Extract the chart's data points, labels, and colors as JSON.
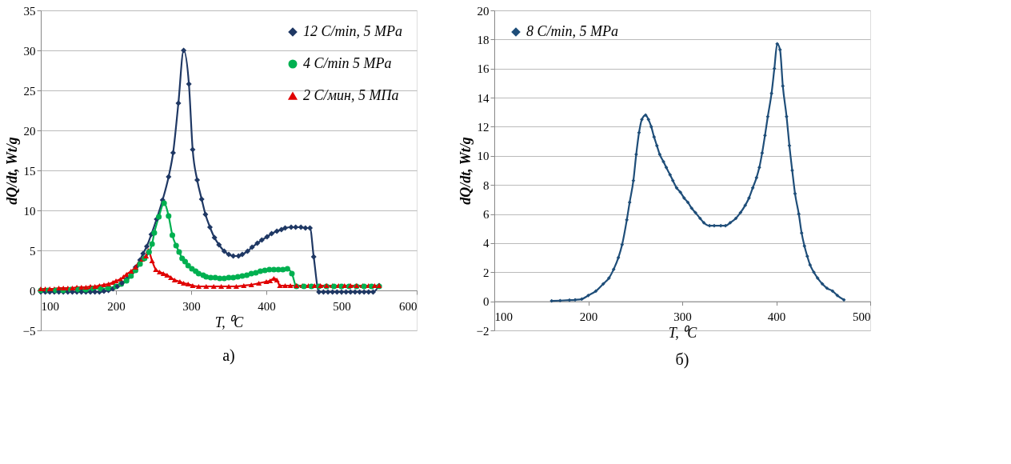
{
  "chart_data": [
    {
      "type": "line",
      "xlabel": "T, ⁰C",
      "ylabel": "dQ/dt, Wt/g",
      "xlim": [
        100,
        600
      ],
      "ylim": [
        -5,
        35
      ],
      "xticks": [
        100,
        200,
        300,
        400,
        500,
        600
      ],
      "yticks": [
        -5,
        0,
        5,
        10,
        15,
        20,
        25,
        30,
        35
      ],
      "grid": "y",
      "legend": "top right",
      "annotations": [
        "а)"
      ],
      "series": [
        {
          "name": "12 C/min, 5 MPa",
          "color": "#1f3864",
          "marker": "diamond",
          "x": [
            100,
            106,
            112,
            118,
            124,
            130,
            136,
            142,
            148,
            154,
            160,
            166,
            172,
            178,
            184,
            190,
            196,
            202,
            208,
            214,
            220,
            226,
            232,
            236,
            241,
            247,
            254,
            262,
            270,
            276,
            283,
            290,
            297,
            302,
            308,
            314,
            319,
            325,
            331,
            337,
            344,
            350,
            356,
            363,
            368,
            375,
            381,
            388,
            394,
            401,
            407,
            414,
            420,
            425,
            433,
            439,
            446,
            452,
            458,
            463,
            470,
            476,
            482,
            488,
            494,
            500,
            506,
            512,
            518,
            524,
            530,
            536,
            542,
            550
          ],
          "values": [
            -0.2,
            -0.2,
            -0.2,
            -0.2,
            -0.2,
            -0.2,
            -0.2,
            -0.2,
            -0.2,
            -0.2,
            -0.2,
            -0.2,
            -0.2,
            -0.2,
            -0.1,
            0,
            0.2,
            0.5,
            0.9,
            1.4,
            2.1,
            2.9,
            3.8,
            4.6,
            5.5,
            7.0,
            8.9,
            11.3,
            14.2,
            17.2,
            23.4,
            30,
            25.8,
            17.6,
            13.8,
            11.4,
            9.5,
            7.9,
            6.6,
            5.7,
            4.9,
            4.5,
            4.3,
            4.3,
            4.5,
            4.9,
            5.4,
            5.9,
            6.3,
            6.7,
            7.1,
            7.4,
            7.6,
            7.8,
            7.9,
            7.9,
            7.9,
            7.8,
            7.8,
            4.2,
            -0.2,
            -0.2,
            -0.2,
            -0.2,
            -0.2,
            -0.2,
            -0.2,
            -0.2,
            -0.2,
            -0.2,
            -0.2,
            -0.2,
            -0.2,
            0.6
          ]
        },
        {
          "name": "4 C/min 5 MPa",
          "color": "#00b050",
          "marker": "circle",
          "x": [
            100,
            110,
            120,
            130,
            140,
            150,
            160,
            170,
            180,
            190,
            200,
            207,
            214,
            220,
            226,
            232,
            238,
            244,
            248,
            251,
            257,
            264,
            270,
            275,
            280,
            284,
            288,
            292,
            296,
            301,
            306,
            310,
            316,
            320,
            326,
            332,
            338,
            344,
            350,
            356,
            362,
            368,
            374,
            380,
            386,
            392,
            398,
            404,
            410,
            416,
            422,
            428,
            434,
            440,
            450,
            460,
            470,
            480,
            490,
            500,
            510,
            520,
            530,
            540,
            550
          ],
          "values": [
            0,
            0,
            0,
            0,
            0.1,
            0.1,
            0.1,
            0.2,
            0.2,
            0.3,
            0.5,
            0.8,
            1.2,
            1.8,
            2.5,
            3.3,
            4.0,
            4.8,
            5.8,
            7.2,
            9.2,
            10.9,
            9.3,
            6.9,
            5.6,
            4.8,
            4.0,
            3.6,
            3.1,
            2.7,
            2.4,
            2.1,
            1.9,
            1.7,
            1.6,
            1.6,
            1.5,
            1.5,
            1.6,
            1.6,
            1.7,
            1.8,
            1.9,
            2.1,
            2.2,
            2.4,
            2.5,
            2.6,
            2.6,
            2.6,
            2.6,
            2.7,
            2.1,
            0.5,
            0.5,
            0.5,
            0.5,
            0.5,
            0.5,
            0.5,
            0.5,
            0.5,
            0.5,
            0.5,
            0.5
          ]
        },
        {
          "name": "2 С/мин, 5 МПа",
          "color": "#e00000",
          "marker": "triangle",
          "x": [
            100,
            106,
            112,
            118,
            124,
            130,
            136,
            142,
            148,
            154,
            160,
            166,
            172,
            178,
            184,
            190,
            196,
            200,
            206,
            210,
            214,
            220,
            226,
            230,
            235,
            240,
            243,
            248,
            253,
            258,
            263,
            268,
            273,
            278,
            285,
            290,
            296,
            302,
            310,
            320,
            330,
            340,
            350,
            360,
            370,
            380,
            390,
            400,
            405,
            410,
            414,
            418,
            425,
            432,
            440,
            448,
            456,
            464,
            472,
            480,
            488,
            496,
            504,
            512,
            520,
            528,
            536,
            544,
            550
          ],
          "values": [
            0.2,
            0.2,
            0.2,
            0.2,
            0.3,
            0.3,
            0.3,
            0.3,
            0.4,
            0.4,
            0.4,
            0.5,
            0.5,
            0.6,
            0.7,
            0.8,
            1.0,
            1.2,
            1.4,
            1.7,
            2.0,
            2.4,
            2.9,
            3.4,
            3.9,
            4.3,
            5.0,
            3.7,
            2.6,
            2.3,
            2.1,
            1.9,
            1.6,
            1.3,
            1.1,
            0.9,
            0.8,
            0.6,
            0.5,
            0.5,
            0.5,
            0.5,
            0.5,
            0.5,
            0.6,
            0.7,
            0.9,
            1.1,
            1.2,
            1.5,
            1.3,
            0.6,
            0.6,
            0.6,
            0.6,
            0.6,
            0.6,
            0.6,
            0.6,
            0.6,
            0.6,
            0.6,
            0.6,
            0.6,
            0.6,
            0.6,
            0.6,
            0.6,
            0.6
          ]
        }
      ]
    },
    {
      "type": "line",
      "xlabel": "T, ⁰C",
      "ylabel": "dQ/dt, Wt/g",
      "xlim": [
        100,
        500
      ],
      "ylim": [
        -2,
        20
      ],
      "xticks": [
        100,
        200,
        300,
        400,
        500
      ],
      "yticks": [
        -2,
        0,
        2,
        4,
        6,
        8,
        10,
        12,
        14,
        16,
        18,
        20
      ],
      "grid": "y",
      "legend": "top left",
      "annotations": [
        "б)"
      ],
      "series": [
        {
          "name": "8 C/min, 5 MPa",
          "color": "#1f4e79",
          "marker": "diamond",
          "x": [
            161,
            170,
            180,
            186,
            193,
            200,
            208,
            216,
            222,
            227,
            232,
            236,
            241,
            244,
            248,
            251,
            254,
            257,
            261,
            264,
            267,
            270,
            273,
            276,
            280,
            283,
            287,
            290,
            294,
            298,
            302,
            306,
            310,
            314,
            319,
            323,
            329,
            334,
            341,
            346,
            351,
            357,
            362,
            367,
            371,
            375,
            379,
            382,
            385,
            388,
            391,
            395,
            398,
            401,
            404,
            407,
            411,
            414,
            417,
            420,
            424,
            427,
            430,
            433,
            436,
            440,
            444,
            449,
            454,
            460,
            465,
            472
          ],
          "values": [
            0.03,
            0.05,
            0.08,
            0.1,
            0.15,
            0.4,
            0.7,
            1.2,
            1.6,
            2.2,
            3.0,
            3.9,
            5.6,
            6.8,
            8.3,
            10.1,
            11.6,
            12.5,
            12.8,
            12.5,
            12.0,
            11.3,
            10.7,
            10.1,
            9.6,
            9.2,
            8.7,
            8.3,
            7.8,
            7.5,
            7.1,
            6.8,
            6.4,
            6.1,
            5.7,
            5.4,
            5.2,
            5.2,
            5.2,
            5.2,
            5.4,
            5.7,
            6.1,
            6.6,
            7.1,
            7.8,
            8.5,
            9.2,
            10.2,
            11.4,
            12.7,
            14.3,
            16.0,
            17.7,
            17.3,
            14.8,
            12.7,
            10.7,
            9.0,
            7.4,
            6.0,
            4.7,
            3.8,
            3.1,
            2.5,
            2.0,
            1.6,
            1.2,
            0.9,
            0.7,
            0.4,
            0.1
          ]
        }
      ]
    }
  ]
}
